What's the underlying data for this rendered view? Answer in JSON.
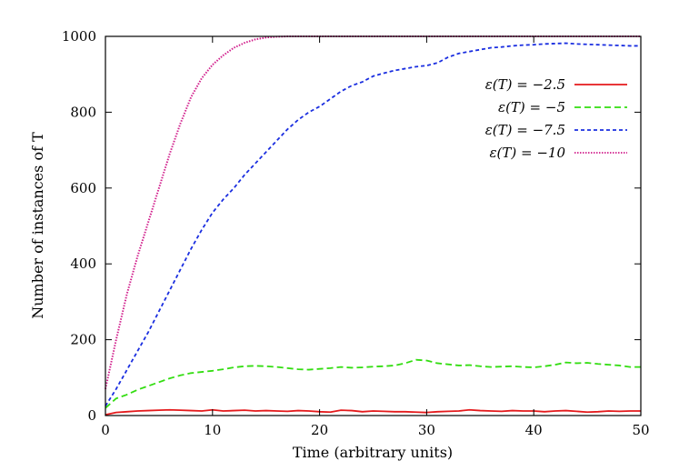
{
  "chart_data": {
    "type": "line",
    "title": "",
    "xlabel": "Time (arbitrary units)",
    "ylabel": "Number of instances of T",
    "xlim": [
      0,
      50
    ],
    "ylim": [
      0,
      1000
    ],
    "xticks": [
      0,
      10,
      20,
      30,
      40,
      50
    ],
    "yticks": [
      0,
      200,
      400,
      600,
      800,
      1000
    ],
    "grid": false,
    "legend_position": "top-right",
    "x": [
      0,
      1,
      2,
      3,
      4,
      5,
      6,
      7,
      8,
      9,
      10,
      11,
      12,
      13,
      14,
      15,
      16,
      17,
      18,
      19,
      20,
      21,
      22,
      23,
      24,
      25,
      26,
      27,
      28,
      29,
      30,
      31,
      32,
      33,
      34,
      35,
      36,
      37,
      38,
      39,
      40,
      41,
      42,
      43,
      44,
      45,
      46,
      47,
      48,
      49,
      50
    ],
    "series": [
      {
        "name": "ε(T) = −2.5",
        "color": "#e41a1c",
        "dash": "solid",
        "values": [
          2,
          8,
          10,
          12,
          13,
          14,
          15,
          14,
          13,
          12,
          15,
          12,
          13,
          14,
          12,
          13,
          12,
          11,
          13,
          12,
          10,
          9,
          14,
          13,
          10,
          12,
          11,
          10,
          10,
          9,
          8,
          10,
          11,
          12,
          15,
          13,
          12,
          11,
          13,
          12,
          12,
          10,
          12,
          13,
          11,
          9,
          10,
          12,
          11,
          12,
          12
        ]
      },
      {
        "name": "ε(T) = −5",
        "color": "#33dd11",
        "dash": "dashed",
        "values": [
          20,
          45,
          55,
          68,
          78,
          88,
          98,
          106,
          112,
          115,
          118,
          122,
          127,
          130,
          131,
          130,
          128,
          125,
          122,
          121,
          123,
          125,
          128,
          126,
          127,
          129,
          130,
          132,
          138,
          147,
          145,
          138,
          135,
          132,
          133,
          130,
          128,
          129,
          130,
          128,
          127,
          130,
          134,
          140,
          138,
          139,
          136,
          134,
          132,
          128,
          128
        ]
      },
      {
        "name": "ε(T) = −7.5",
        "color": "#1a2ee0",
        "dash": "short-dashed",
        "values": [
          25,
          70,
          120,
          170,
          220,
          275,
          330,
          385,
          440,
          490,
          535,
          570,
          600,
          635,
          665,
          695,
          725,
          755,
          780,
          800,
          815,
          835,
          855,
          870,
          880,
          895,
          903,
          910,
          915,
          920,
          923,
          930,
          945,
          955,
          960,
          965,
          970,
          972,
          975,
          977,
          978,
          980,
          981,
          982,
          980,
          979,
          978,
          977,
          976,
          975,
          975
        ]
      },
      {
        "name": "ε(T) = −10",
        "color": "#d11f8c",
        "dash": "dotted",
        "values": [
          70,
          200,
          320,
          420,
          510,
          600,
          690,
          770,
          840,
          890,
          925,
          950,
          970,
          983,
          992,
          997,
          999,
          1000,
          1000,
          1000,
          1000,
          1000,
          1000,
          1000,
          1000,
          1000,
          1000,
          1000,
          1000,
          1000,
          1000,
          1000,
          1000,
          1000,
          1000,
          1000,
          1000,
          1000,
          1000,
          1000,
          1000,
          1000,
          1000,
          1000,
          1000,
          1000,
          1000,
          1000,
          1000,
          1000,
          1000
        ]
      }
    ]
  }
}
